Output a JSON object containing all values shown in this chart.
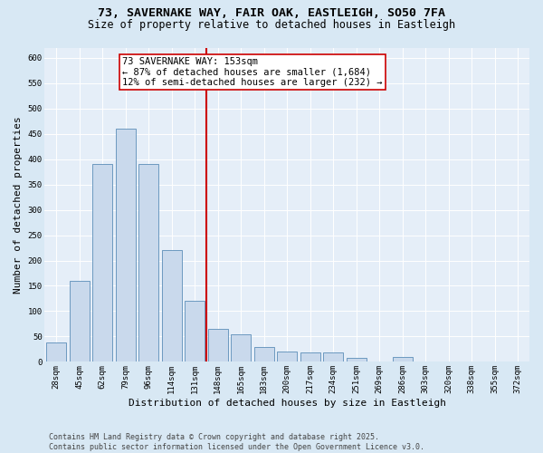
{
  "title_line1": "73, SAVERNAKE WAY, FAIR OAK, EASTLEIGH, SO50 7FA",
  "title_line2": "Size of property relative to detached houses in Eastleigh",
  "xlabel": "Distribution of detached houses by size in Eastleigh",
  "ylabel": "Number of detached properties",
  "categories": [
    "28sqm",
    "45sqm",
    "62sqm",
    "79sqm",
    "96sqm",
    "114sqm",
    "131sqm",
    "148sqm",
    "165sqm",
    "183sqm",
    "200sqm",
    "217sqm",
    "234sqm",
    "251sqm",
    "269sqm",
    "286sqm",
    "303sqm",
    "320sqm",
    "338sqm",
    "355sqm",
    "372sqm"
  ],
  "values": [
    38,
    160,
    390,
    460,
    390,
    220,
    120,
    65,
    55,
    30,
    20,
    18,
    18,
    8,
    0,
    10,
    0,
    0,
    0,
    0,
    0
  ],
  "bar_color": "#c9d9ec",
  "bar_edge_color": "#5b8db8",
  "vline_color": "#cc0000",
  "vline_x": 7.5,
  "annotation_text": "73 SAVERNAKE WAY: 153sqm\n← 87% of detached houses are smaller (1,684)\n12% of semi-detached houses are larger (232) →",
  "annotation_edge_color": "#cc0000",
  "annotation_face_color": "#ffffff",
  "ylim_min": 0,
  "ylim_max": 620,
  "yticks": [
    0,
    50,
    100,
    150,
    200,
    250,
    300,
    350,
    400,
    450,
    500,
    550,
    600
  ],
  "bg_color": "#d8e8f4",
  "plot_bg_color": "#e5eef8",
  "footer_text": "Contains HM Land Registry data © Crown copyright and database right 2025.\nContains public sector information licensed under the Open Government Licence v3.0.",
  "title_fontsize": 9.5,
  "subtitle_fontsize": 8.5,
  "axis_label_fontsize": 8,
  "tick_fontsize": 6.5,
  "annotation_fontsize": 7.5,
  "footer_fontsize": 6
}
